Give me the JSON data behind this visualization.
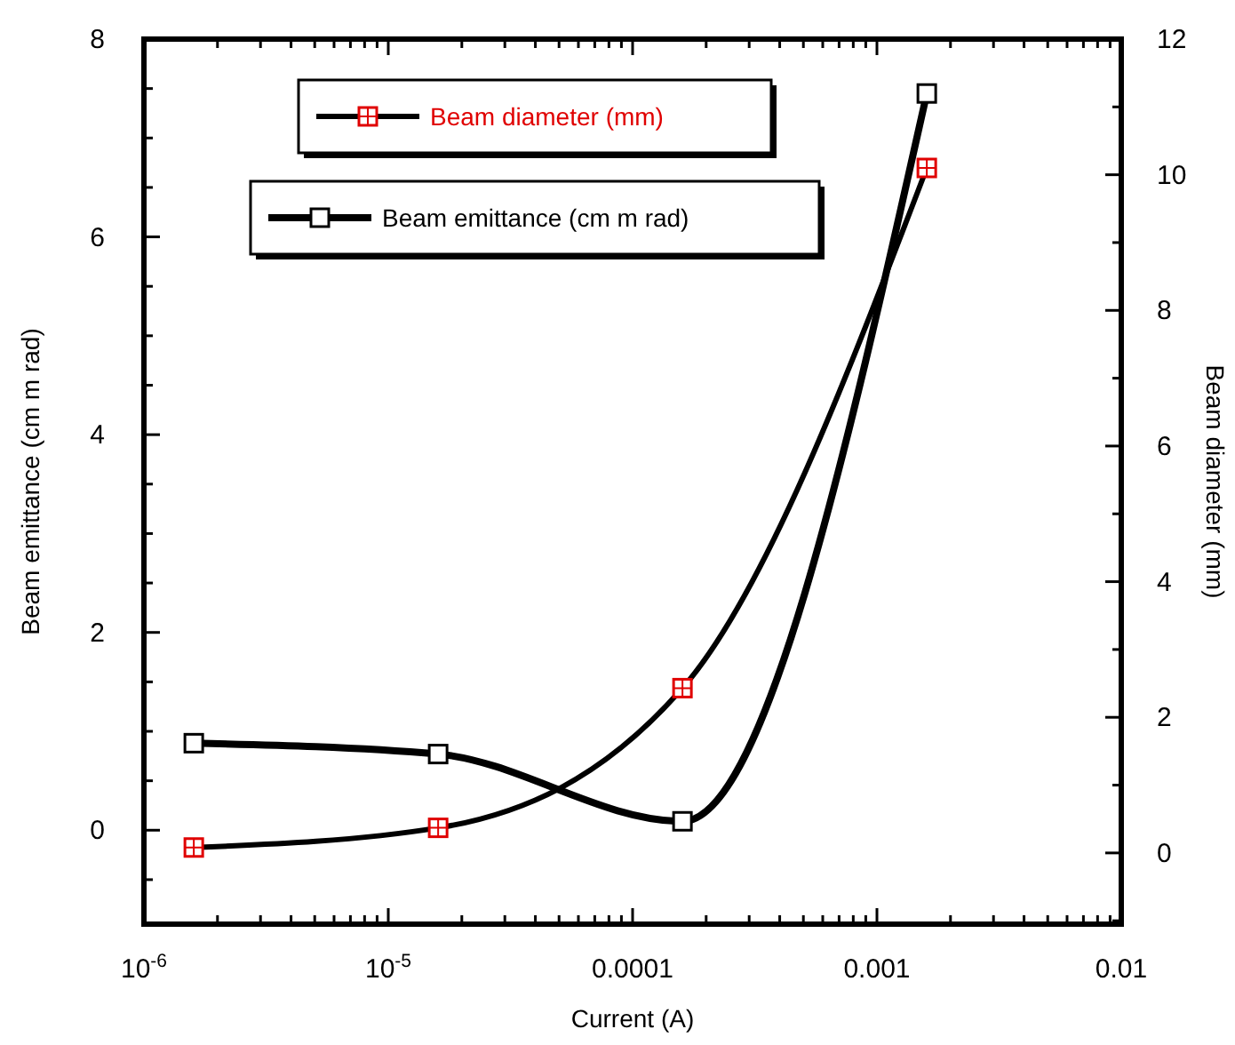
{
  "chart_data": {
    "type": "line",
    "xlabel": "Current (A)",
    "ylabel": "Beam emittance (cm m rad)",
    "y2label": "Beam diameter (mm)",
    "log": "x",
    "x": [
      1.6e-06,
      1.6e-05,
      0.00016,
      0.0016
    ],
    "xlim": [
      1e-06,
      0.01
    ],
    "xticks": [
      {
        "value": 1e-06,
        "label": "10$^{-6}$"
      },
      {
        "value": 2e-06,
        "label": null
      },
      {
        "value": 3e-06,
        "label": null
      },
      {
        "value": 4e-06,
        "label": null
      },
      {
        "value": 5e-06,
        "label": null
      },
      {
        "value": 6e-06,
        "label": null
      },
      {
        "value": 7e-06,
        "label": null
      },
      {
        "value": 8e-06,
        "label": null
      },
      {
        "value": 9e-06,
        "label": null
      },
      {
        "value": 1e-05,
        "label": "10$^{-5}$"
      },
      {
        "value": 2e-05,
        "label": null
      },
      {
        "value": 3e-05,
        "label": null
      },
      {
        "value": 4e-05,
        "label": null
      },
      {
        "value": 5e-05,
        "label": null
      },
      {
        "value": 6e-05,
        "label": null
      },
      {
        "value": 7e-05,
        "label": null
      },
      {
        "value": 8e-05,
        "label": null
      },
      {
        "value": 9e-05,
        "label": null
      },
      0.0001,
      {
        "value": 0.0002,
        "label": null
      },
      {
        "value": 0.0003,
        "label": null
      },
      {
        "value": 0.0004,
        "label": null
      },
      {
        "value": 0.0005,
        "label": null
      },
      {
        "value": 0.0006,
        "label": null
      },
      {
        "value": 0.0007,
        "label": null
      },
      {
        "value": 0.0008,
        "label": null
      },
      {
        "value": 0.0009,
        "label": null
      },
      0.001,
      {
        "value": 0.002,
        "label": null
      },
      {
        "value": 0.003,
        "label": null
      },
      {
        "value": 0.004,
        "label": null
      },
      {
        "value": 0.005,
        "label": null
      },
      {
        "value": 0.006,
        "label": null
      },
      {
        "value": 0.007,
        "label": null
      },
      {
        "value": 0.008,
        "label": null
      },
      {
        "value": 0.009,
        "label": null
      },
      0.01
    ],
    "ylim": [
      -0.95,
      8
    ],
    "yticks": [
      {
        "value": -0.5,
        "label": null
      },
      0,
      {
        "value": 0.5,
        "label": null
      },
      {
        "value": 1,
        "label": null
      },
      {
        "value": 1.5,
        "label": null
      },
      2,
      {
        "value": 2.5,
        "label": null
      },
      {
        "value": 3,
        "label": null
      },
      {
        "value": 3.5,
        "label": null
      },
      4,
      {
        "value": 4.5,
        "label": null
      },
      {
        "value": 5,
        "label": null
      },
      {
        "value": 5.5,
        "label": null
      },
      6,
      {
        "value": 6.5,
        "label": null
      },
      {
        "value": 7,
        "label": null
      },
      {
        "value": 7.5,
        "label": null
      },
      8
    ],
    "y2lim": [
      -1.05,
      12
    ],
    "y2ticks": [
      {
        "value": -1,
        "label": null
      },
      0,
      {
        "value": 1,
        "label": null
      },
      2,
      {
        "value": 3,
        "label": null
      },
      4,
      {
        "value": 5,
        "label": null
      },
      6,
      {
        "value": 7,
        "label": null
      },
      8,
      {
        "value": 9,
        "label": null
      },
      10,
      {
        "value": 11,
        "label": null
      },
      12
    ],
    "marker": "square",
    "legend": "top left",
    "grid": false,
    "series": [
      {
        "name": "Beam diameter (mm)",
        "color": "#000000",
        "colors": [
          "#e00000",
          "#e00000",
          "#e00000",
          "#e00000"
        ],
        "axis": "y2",
        "values": [
          0.08,
          0.37,
          2.43,
          10.1
        ]
      },
      {
        "name": "Beam emittance (cm m rad)",
        "color": "#000000",
        "axis": "y",
        "values": [
          0.88,
          0.77,
          0.09,
          7.45
        ]
      }
    ]
  }
}
